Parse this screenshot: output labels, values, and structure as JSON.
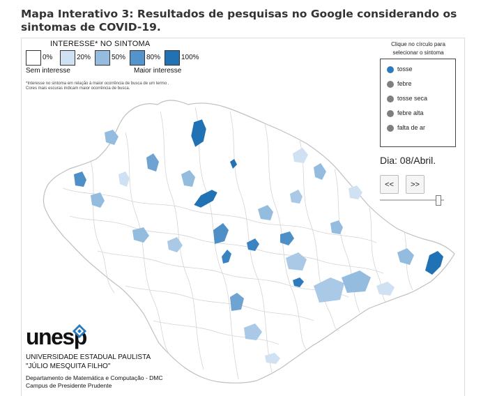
{
  "title": "Mapa Interativo 3: Resultados de pesquisas no Google considerando os sintomas de COVID-19.",
  "legend": {
    "heading": "INTERESSE* NO SINTOMA",
    "items": [
      {
        "label": "0%",
        "color": "#ffffff"
      },
      {
        "label": "20%",
        "color": "#cfe1f2"
      },
      {
        "label": "50%",
        "color": "#93bcdf"
      },
      {
        "label": "80%",
        "color": "#5494cc"
      },
      {
        "label": "100%",
        "color": "#2171b5"
      }
    ],
    "low_label": "Sem interesse",
    "high_label": "Maior interesse",
    "note_line1": "*Interesse no sintoma em relação à maior ocorrência de busca de um termo .",
    "note_line2": "Cores mais escuras indicam maior ocorrência de busca."
  },
  "selector": {
    "caption_line1": "Clique no círculo para",
    "caption_line2": "selecionar o sintoma",
    "symptoms": [
      {
        "label": "tosse",
        "selected": true
      },
      {
        "label": "febre",
        "selected": false
      },
      {
        "label": "tosse seca",
        "selected": false
      },
      {
        "label": "febre alta",
        "selected": false
      },
      {
        "label": "falta de ar",
        "selected": false
      }
    ],
    "active_color": "#2a7bbd",
    "inactive_color": "#7f7f7f"
  },
  "date": {
    "text": "Dia: 08/Abril."
  },
  "controls": {
    "prev_label": "<<",
    "next_label": ">>",
    "slider_position": 0.95
  },
  "footer": {
    "logo_text": "unesp",
    "university_line1": "UNIVERSIDADE ESTADUAL PAULISTA",
    "university_line2": "\"JÚLIO MESQUITA FILHO\"",
    "department": "Departamento de Matemática e Computação - DMC",
    "campus": "Campus de Presidente Prudente"
  },
  "map": {
    "border_color": "#cfcfcf",
    "fill_color": "#ffffff",
    "highlight_colors": [
      "#cfe1f2",
      "#a9c9e6",
      "#93bcdf",
      "#5494cc",
      "#2171b5"
    ]
  }
}
